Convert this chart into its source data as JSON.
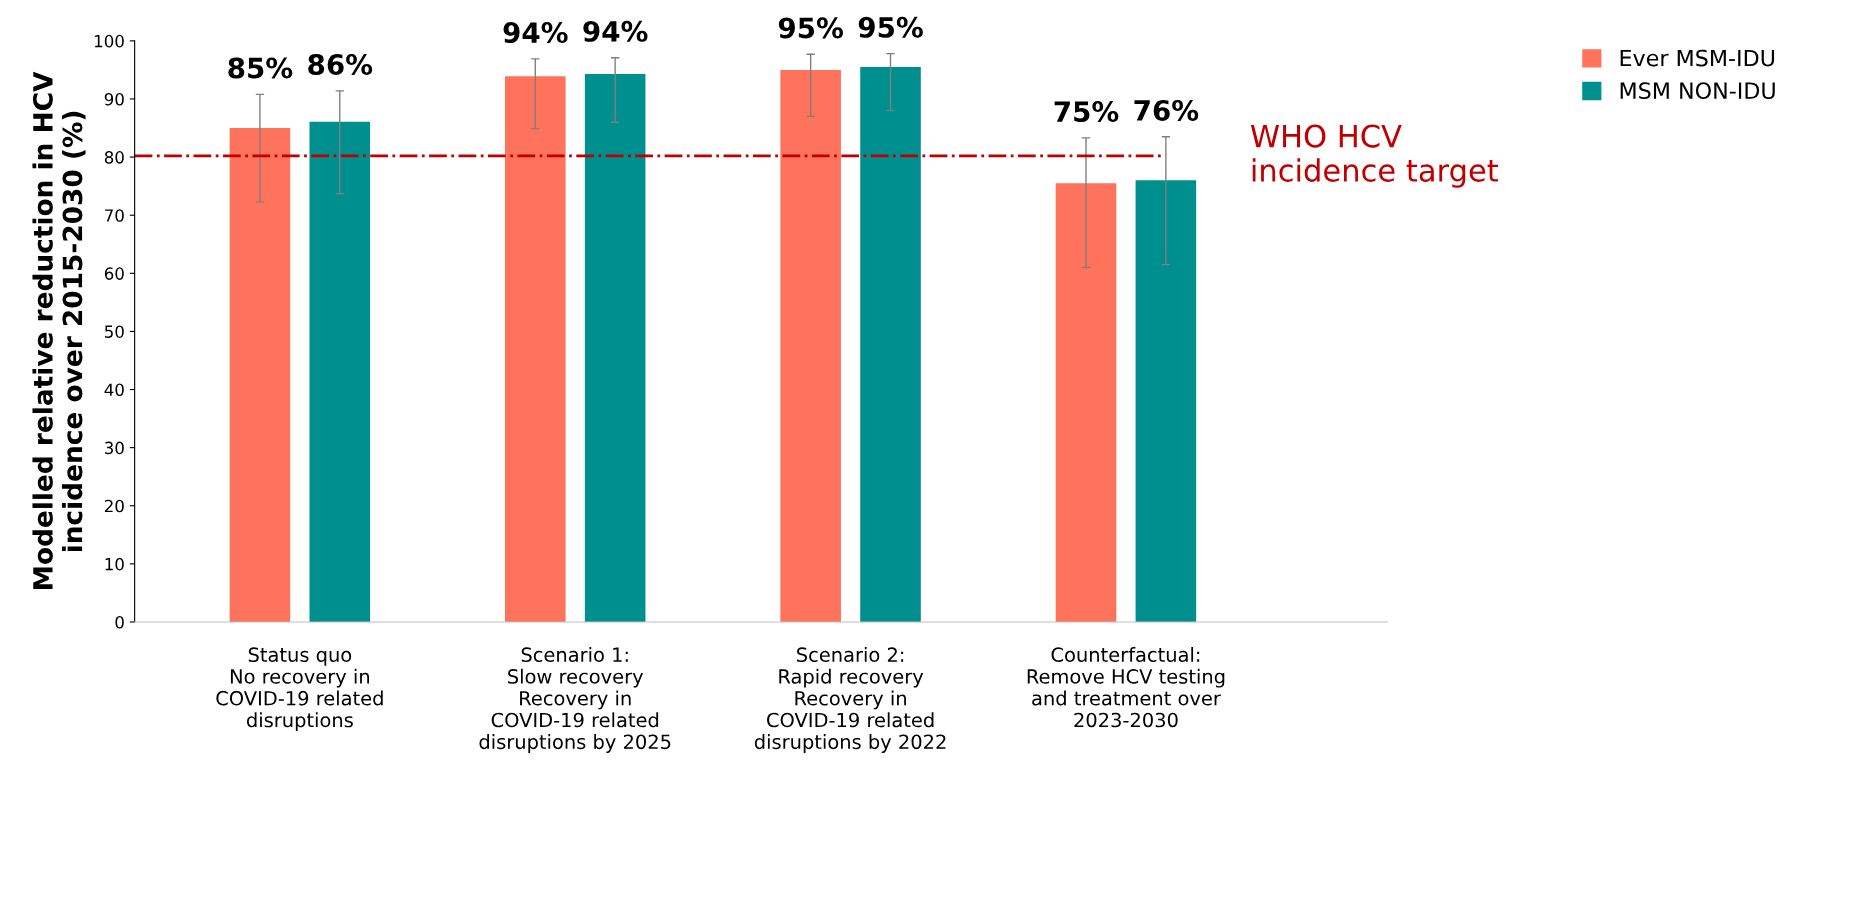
{
  "chart_data": {
    "type": "bar",
    "ylabel": "Modelled relative reduction in HCV\nincidence over 2015-2030 (%)",
    "categories": [
      "Status quo\nNo recovery in\nCOVID-19 related\ndisruptions",
      "Scenario 1:\nSlow recovery\nRecovery in\nCOVID-19 related\ndisruptions by 2025",
      "Scenario 2:\nRapid recovery\nRecovery in\nCOVID-19 related\ndisruptions by 2022",
      "Counterfactual:\nRemove HCV testing\nand treatment over\n2023-2030"
    ],
    "series": [
      {
        "name": "Ever MSM-IDU",
        "color": "#ff725c",
        "values": [
          85.0,
          93.9,
          95.0,
          75.5
        ],
        "errors": [
          [
            72.3,
            90.8
          ],
          [
            84.9,
            96.9
          ],
          [
            87.0,
            97.7
          ],
          [
            61.0,
            83.3
          ]
        ],
        "value_labels": [
          "85%",
          "94%",
          "95%",
          "75%"
        ]
      },
      {
        "name": "MSM NON-IDU",
        "color": "#008f8f",
        "values": [
          86.1,
          94.3,
          95.5,
          76.0
        ],
        "errors": [
          [
            73.7,
            91.4
          ],
          [
            86.0,
            97.1
          ],
          [
            88.0,
            97.8
          ],
          [
            61.5,
            83.5
          ]
        ],
        "value_labels": [
          "86%",
          "94%",
          "95%",
          "76%"
        ]
      }
    ],
    "ylim": [
      0,
      100
    ],
    "yticks": [
      0,
      10,
      20,
      30,
      40,
      50,
      60,
      70,
      80,
      90,
      100
    ],
    "ref_lines": [
      {
        "axis": "y",
        "value": 80.2,
        "label": "WHO HCV\nincidence target",
        "color": "#c00000",
        "line_style": "dashdot"
      }
    ],
    "grid": false,
    "legend": "top right"
  }
}
